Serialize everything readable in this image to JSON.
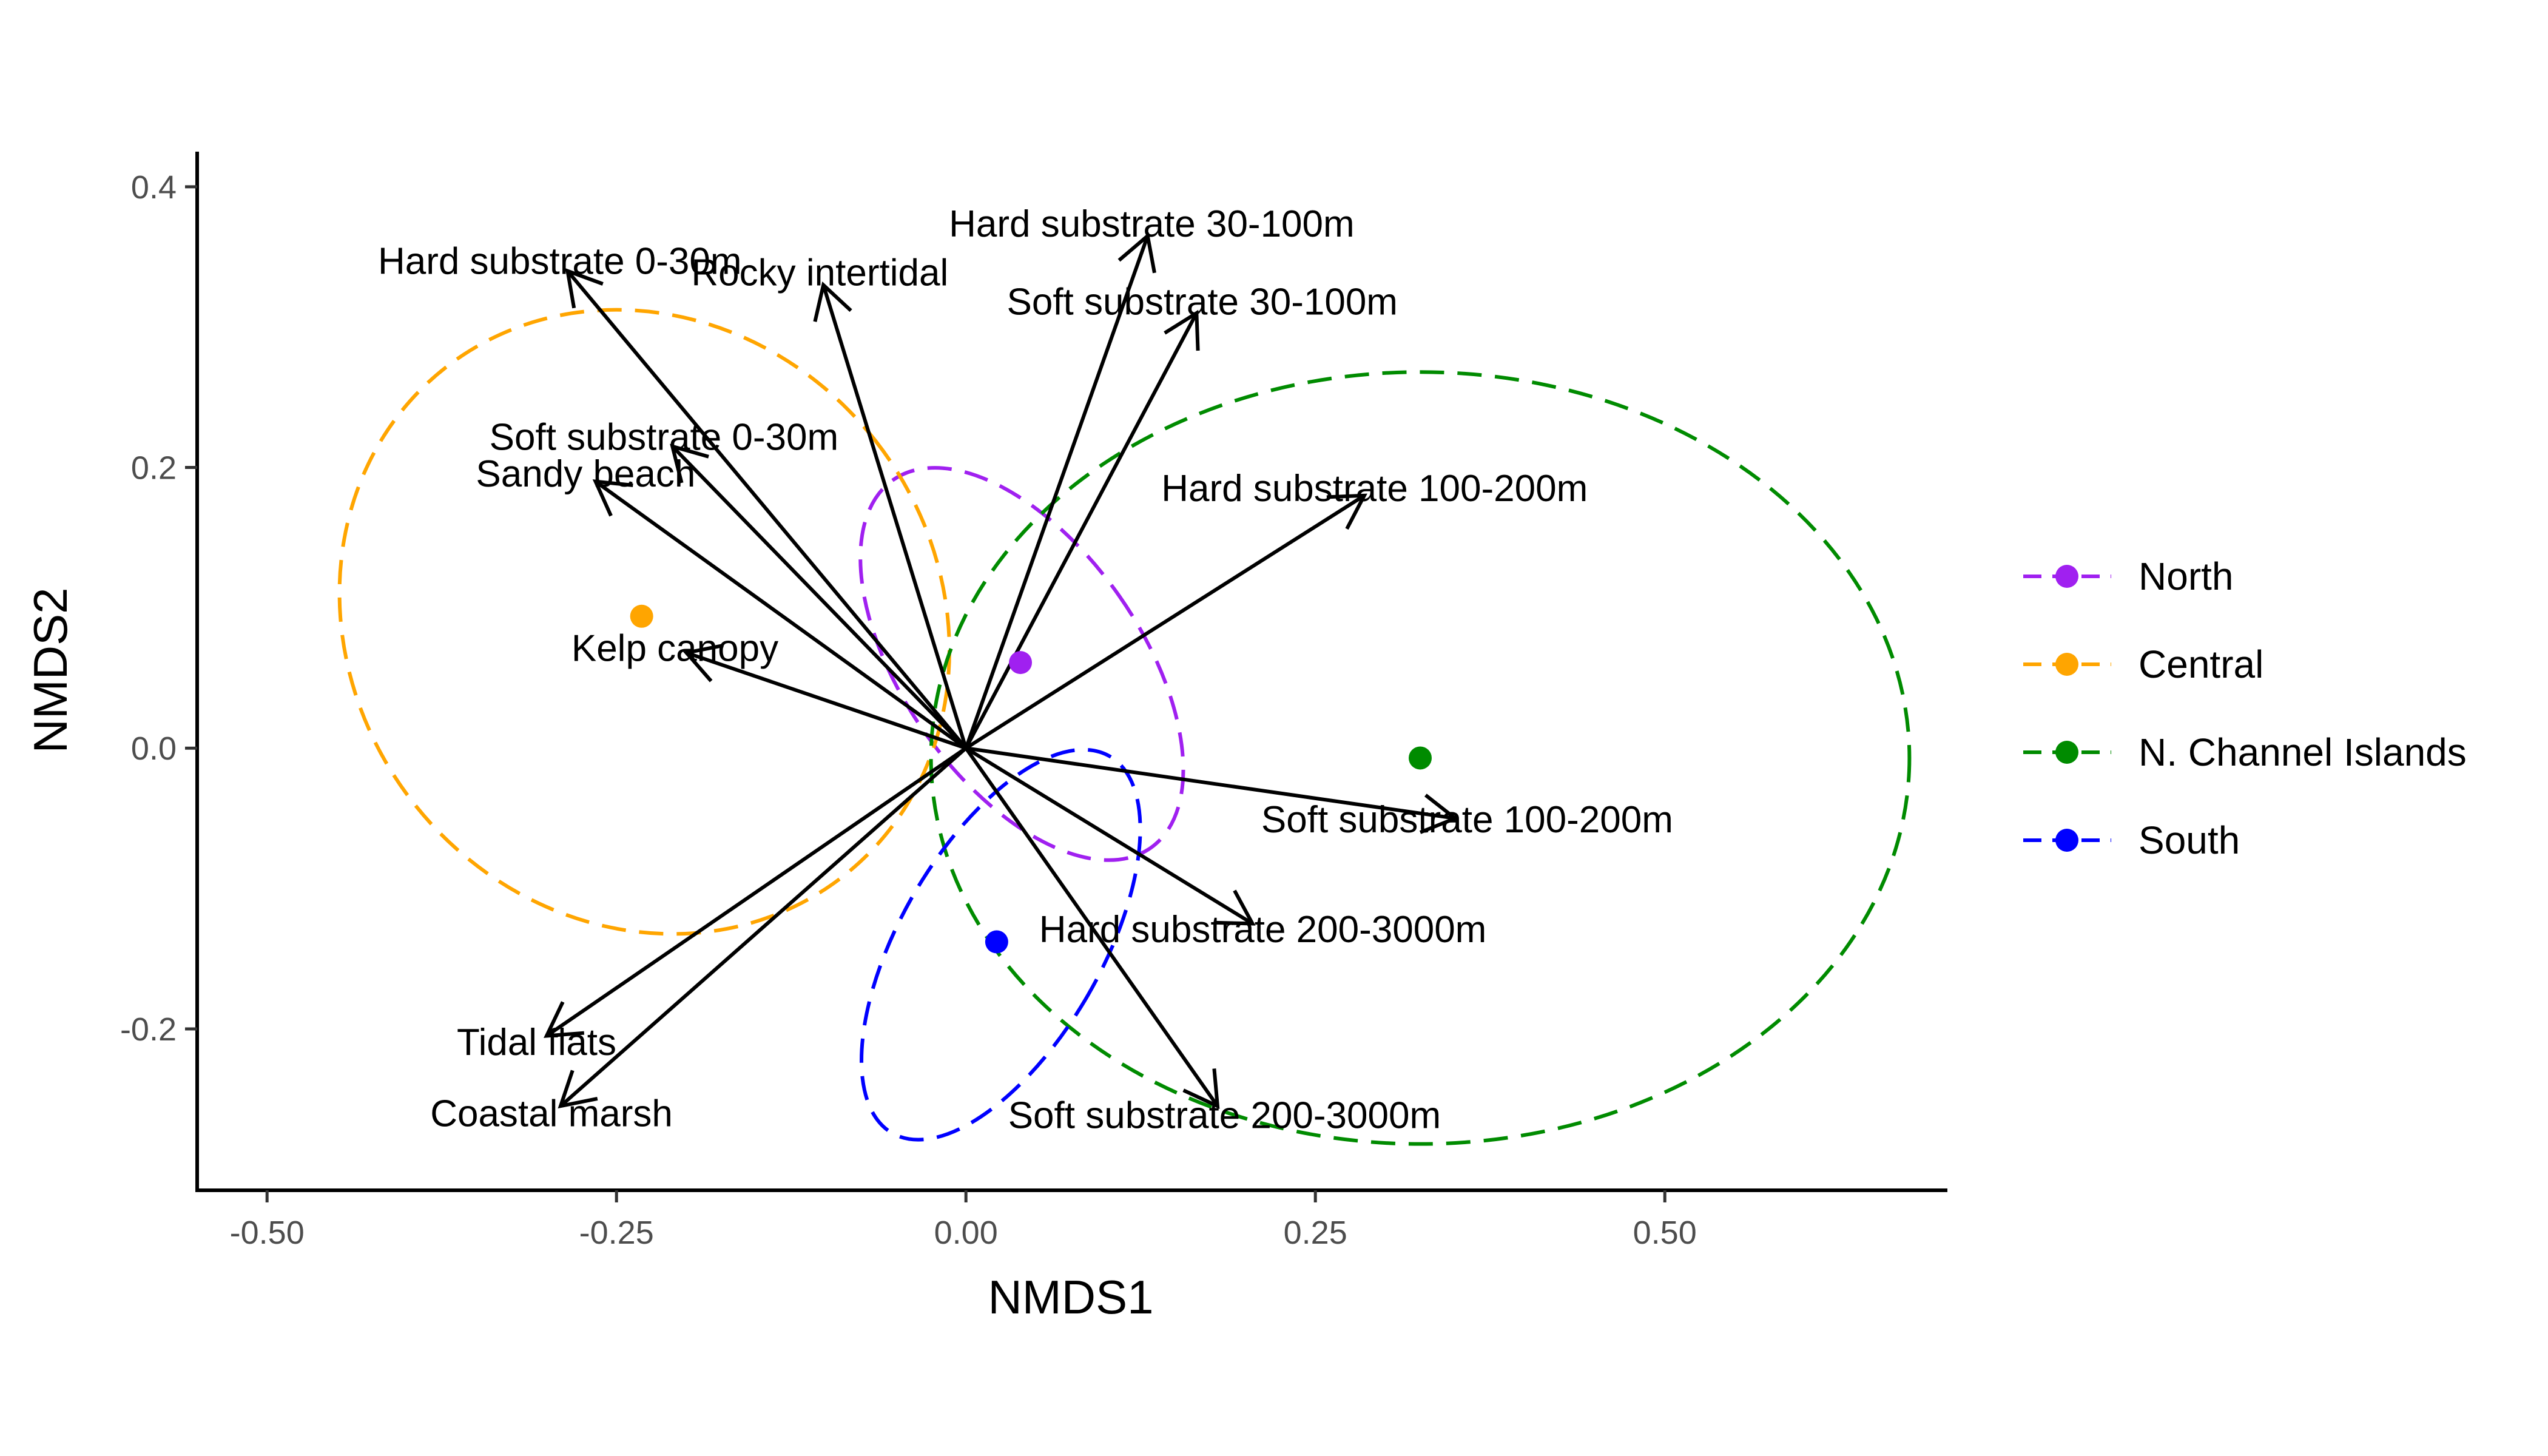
{
  "chart_data": {
    "type": "scatter",
    "xlabel": "NMDS1",
    "ylabel": "NMDS2",
    "xlim": [
      -0.55,
      0.7
    ],
    "ylim": [
      -0.315,
      0.425
    ],
    "xticks": [
      -0.5,
      -0.25,
      0.0,
      0.25,
      0.5
    ],
    "xtick_labels": [
      "-0.50",
      "-0.25",
      "0.00",
      "0.25",
      "0.50"
    ],
    "yticks": [
      -0.2,
      0.0,
      0.2,
      0.4
    ],
    "ytick_labels": [
      "-0.2",
      "0.0",
      "0.2",
      "0.4"
    ],
    "grid": false,
    "legend_position": "right",
    "series": [
      {
        "name": "North",
        "color": "#A020F0",
        "centroid": [
          0.039,
          0.061
        ],
        "ellipse": {
          "cx": 0.04,
          "cy": 0.06,
          "rx": 0.085,
          "ry": 0.16,
          "angle": -35
        }
      },
      {
        "name": "Central",
        "color": "#FFA500",
        "centroid": [
          -0.232,
          0.094
        ],
        "ellipse": {
          "cx": -0.23,
          "cy": 0.09,
          "rx": 0.21,
          "ry": 0.23,
          "angle": -38
        }
      },
      {
        "name": "N. Channel Islands",
        "color": "#008B00",
        "centroid": [
          0.325,
          -0.007
        ],
        "ellipse": {
          "cx": 0.325,
          "cy": -0.007,
          "rx": 0.35,
          "ry": 0.275,
          "angle": 0
        }
      },
      {
        "name": "South",
        "color": "#0000FF",
        "centroid": [
          0.022,
          -0.138
        ],
        "ellipse": {
          "cx": 0.025,
          "cy": -0.14,
          "rx": 0.072,
          "ry": 0.155,
          "angle": 30
        }
      }
    ],
    "vectors": [
      {
        "label": "Hard substrate 0-30m",
        "x": -0.285,
        "y": 0.34
      },
      {
        "label": "Rocky intertidal",
        "x": -0.102,
        "y": 0.33
      },
      {
        "label": "Hard substrate 30-100m",
        "x": 0.13,
        "y": 0.365
      },
      {
        "label": "Soft substrate 30-100m",
        "x": 0.165,
        "y": 0.31
      },
      {
        "label": "Soft substrate 0-30m",
        "x": -0.21,
        "y": 0.215
      },
      {
        "label": "Sandy beach",
        "x": -0.265,
        "y": 0.19
      },
      {
        "label": "Hard substrate 100-200m",
        "x": 0.285,
        "y": 0.18
      },
      {
        "label": "Kelp canopy",
        "x": -0.2,
        "y": 0.068
      },
      {
        "label": "Soft substrate 100-200m",
        "x": 0.35,
        "y": -0.05
      },
      {
        "label": "Hard substrate 200-3000m",
        "x": 0.205,
        "y": -0.125
      },
      {
        "label": "Soft substrate 200-3000m",
        "x": 0.18,
        "y": -0.255
      },
      {
        "label": "Tidal flats",
        "x": -0.3,
        "y": -0.205
      },
      {
        "label": "Coastal marsh",
        "x": -0.29,
        "y": -0.255
      }
    ]
  }
}
